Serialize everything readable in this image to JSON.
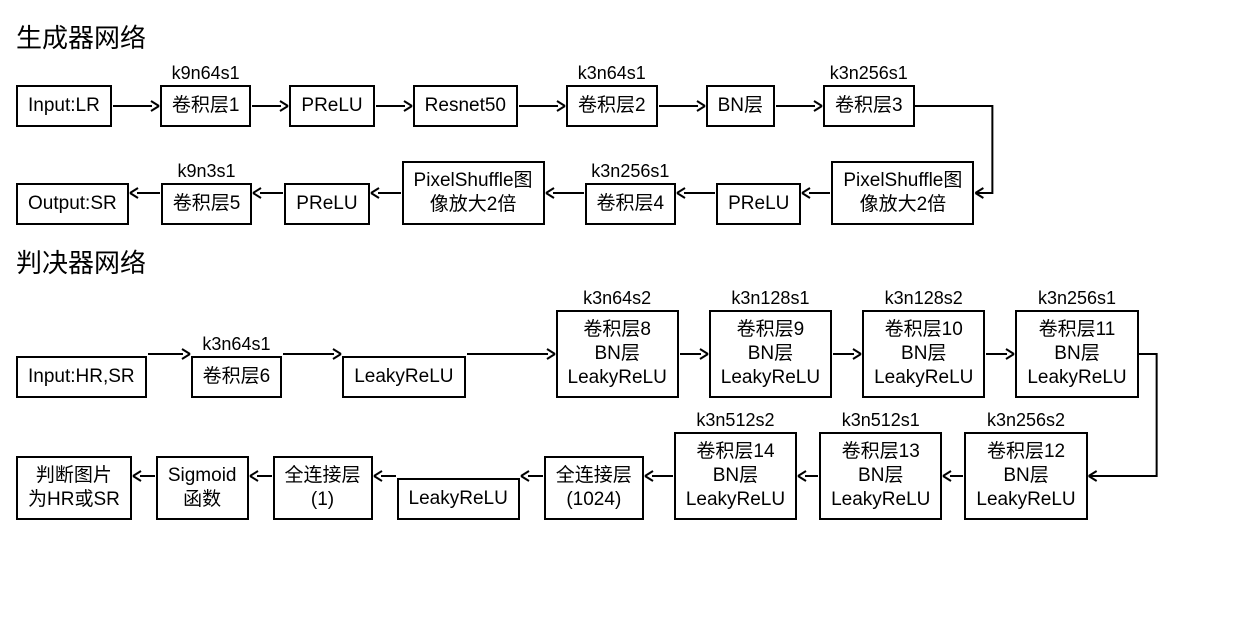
{
  "generator": {
    "title": "生成器网络",
    "row1": [
      {
        "top": "",
        "lines": [
          "Input:LR"
        ]
      },
      {
        "top": "k9n64s1",
        "lines": [
          "卷积层1"
        ]
      },
      {
        "top": "",
        "lines": [
          "PReLU"
        ]
      },
      {
        "top": "",
        "lines": [
          "Resnet50"
        ]
      },
      {
        "top": "k3n64s1",
        "lines": [
          "卷积层2"
        ]
      },
      {
        "top": "",
        "lines": [
          "BN层"
        ]
      },
      {
        "top": "k3n256s1",
        "lines": [
          "卷积层3"
        ]
      }
    ],
    "row2": [
      {
        "top": "",
        "lines": [
          "Output:SR"
        ]
      },
      {
        "top": "k9n3s1",
        "lines": [
          "卷积层5"
        ]
      },
      {
        "top": "",
        "lines": [
          "PReLU"
        ]
      },
      {
        "top": "",
        "lines": [
          "PixelShuffle图",
          "像放大2倍"
        ]
      },
      {
        "top": "k3n256s1",
        "lines": [
          "卷积层4"
        ]
      },
      {
        "top": "",
        "lines": [
          "PReLU"
        ]
      },
      {
        "top": "",
        "lines": [
          "PixelShuffle图",
          "像放大2倍"
        ]
      }
    ]
  },
  "discriminator": {
    "title": "判决器网络",
    "row1": [
      {
        "top": "",
        "lines": [
          "Input:HR,SR"
        ]
      },
      {
        "top": "k3n64s1",
        "lines": [
          "卷积层6"
        ]
      },
      {
        "top": "",
        "lines": [
          "LeakyReLU"
        ]
      },
      {
        "top": "k3n64s2",
        "lines": [
          "卷积层8",
          "BN层",
          "LeakyReLU"
        ]
      },
      {
        "top": "k3n128s1",
        "lines": [
          "卷积层9",
          "BN层",
          "LeakyReLU"
        ]
      },
      {
        "top": "k3n128s2",
        "lines": [
          "卷积层10",
          "BN层",
          "LeakyReLU"
        ]
      },
      {
        "top": "k3n256s1",
        "lines": [
          "卷积层11",
          "BN层",
          "LeakyReLU"
        ]
      }
    ],
    "row2": [
      {
        "top": "",
        "lines": [
          "判断图片",
          "为HR或SR"
        ]
      },
      {
        "top": "",
        "lines": [
          "Sigmoid",
          "函数"
        ]
      },
      {
        "top": "",
        "lines": [
          "全连接层",
          "(1)"
        ]
      },
      {
        "top": "",
        "lines": [
          "LeakyReLU"
        ]
      },
      {
        "top": "",
        "lines": [
          "全连接层",
          "(1024)"
        ]
      },
      {
        "top": "k3n512s2",
        "lines": [
          "卷积层14",
          "BN层",
          "LeakyReLU"
        ]
      },
      {
        "top": "k3n512s1",
        "lines": [
          "卷积层13",
          "BN层",
          "LeakyReLU"
        ]
      },
      {
        "top": "k3n256s2",
        "lines": [
          "卷积层12",
          "BN层",
          "LeakyReLU"
        ]
      }
    ]
  },
  "style": {
    "arrow_color": "#000000",
    "arrow_len_short": 38,
    "arrow_len_long": 60,
    "arrow_thickness": 2
  }
}
